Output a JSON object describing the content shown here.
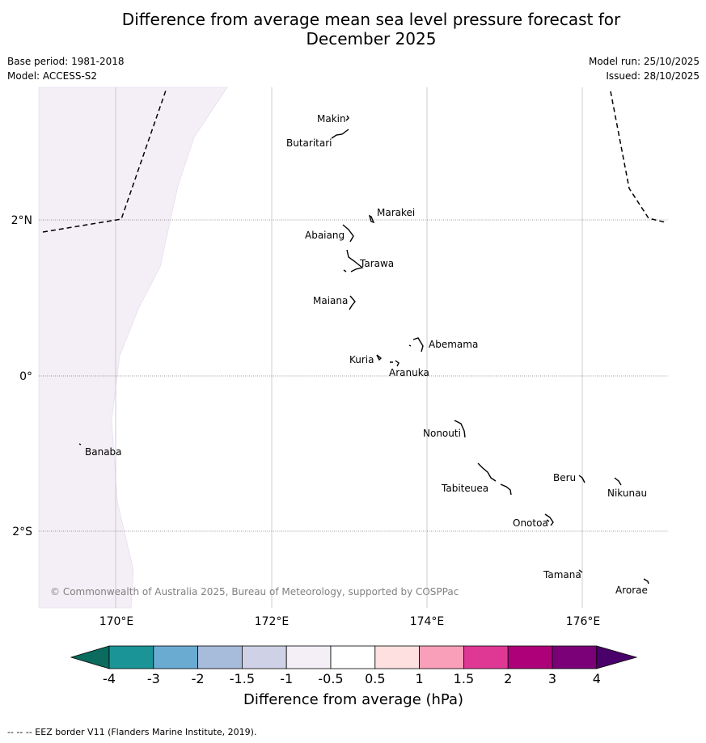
{
  "header": {
    "title_line1": "Difference from average mean sea level pressure forecast for",
    "title_line2": "December 2025",
    "base_period": "Base period: 1981-2018",
    "model": "Model: ACCESS-S2",
    "model_run": "Model run: 25/10/2025",
    "issued": "Issued: 28/10/2025"
  },
  "map": {
    "lat_labels": [
      "2°N",
      "0°",
      "2°S"
    ],
    "lon_labels": [
      "170°E",
      "172°E",
      "174°E",
      "176°E"
    ],
    "copyright": "© Commonwealth of Australia 2025, Bureau of Meteorology, supported by COSPPac",
    "islands": [
      "Makin",
      "Butaritari",
      "Marakei",
      "Abaiang",
      "Tarawa",
      "Maiana",
      "Abemama",
      "Kuria",
      "Aranuka",
      "Nonouti",
      "Banaba",
      "Beru",
      "Nikunau",
      "Tabiteuea",
      "Onotoa",
      "Tamana",
      "Arorae"
    ],
    "anomaly_shading": {
      "range_hpa": "-1 to -0.5",
      "color": "#f4eef6"
    }
  },
  "colorbar": {
    "label": "Difference from average (hPa)",
    "ticks": [
      "-4",
      "-3",
      "-2",
      "-1.5",
      "-1",
      "-0.5",
      "0.5",
      "1",
      "1.5",
      "2",
      "3",
      "4"
    ],
    "colors": [
      "#1b9497",
      "#6aabd2",
      "#a7bbdb",
      "#cfd1e6",
      "#f4eef6",
      "#ffffff",
      "#fde0df",
      "#f99fb9",
      "#df3894",
      "#ae0179",
      "#7a0177"
    ],
    "low_extend_color": "#0b6b5e",
    "high_extend_color": "#4a006a"
  },
  "footer": {
    "eez_note": "--  --  -- EEZ border V11 (Flanders Marine Institute, 2019)."
  }
}
